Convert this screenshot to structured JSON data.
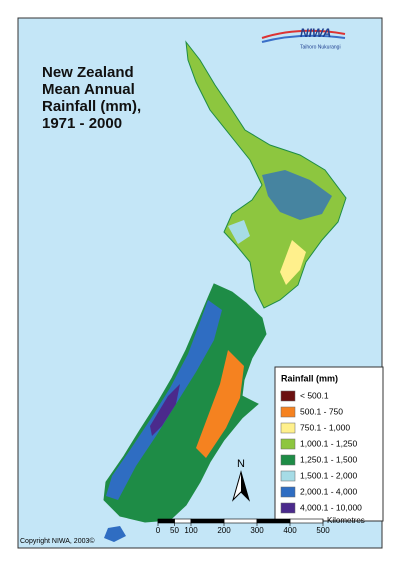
{
  "title": [
    "New Zealand",
    "Mean Annual",
    "Rainfall (mm),",
    "1971 - 2000"
  ],
  "logo": {
    "name": "NIWA",
    "tagline": "Taihoro Nukurangi"
  },
  "legend": {
    "title": "Rainfall (mm)",
    "items": [
      {
        "label": "< 500.1",
        "color": "#6b1010"
      },
      {
        "label": "500.1 - 750",
        "color": "#f58220"
      },
      {
        "label": "750.1 - 1,000",
        "color": "#fff08c"
      },
      {
        "label": "1,000.1 - 1,250",
        "color": "#8dc63f"
      },
      {
        "label": "1,250.1 - 1,500",
        "color": "#1e8c46"
      },
      {
        "label": "1,500.1 - 2,000",
        "color": "#a6dce6"
      },
      {
        "label": "2,000.1 - 4,000",
        "color": "#2f6dc2"
      },
      {
        "label": "4,000.1 - 10,000",
        "color": "#4b2a8c"
      }
    ]
  },
  "scale": {
    "unit": "Kilometres",
    "ticks": [
      0,
      50,
      100,
      200,
      300,
      400,
      500
    ]
  },
  "north": "N",
  "copyright": "Copyright NIWA, 2003©"
}
